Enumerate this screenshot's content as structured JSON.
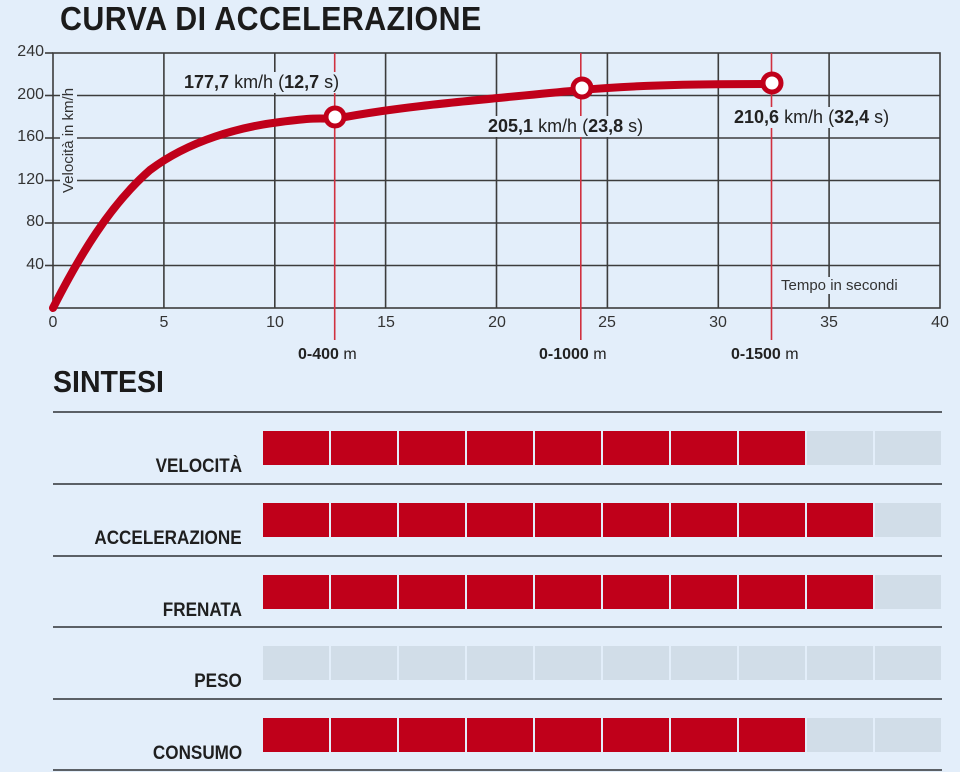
{
  "title": "CURVA DI ACCELERAZIONE",
  "synthesis_title": "SINTESI",
  "colors": {
    "accent": "#c0001a",
    "background": "#e3eefa",
    "empty_cell": "#d1dde8",
    "grid": "#3a3a3a"
  },
  "chart": {
    "ylabel": "Velocità in km/h",
    "xlabel": "Tempo in secondi",
    "yticks": [
      "240",
      "200",
      "160",
      "120",
      "80",
      "40"
    ],
    "xticks": [
      "0",
      "5",
      "10",
      "15",
      "20",
      "25",
      "30",
      "35",
      "40"
    ],
    "annotations": [
      {
        "speed": "177,7",
        "unit": "km/h",
        "time": "12,7",
        "tunit": "s",
        "distance": "0-400",
        "dunit": "m"
      },
      {
        "speed": "205,1",
        "unit": "km/h",
        "time": "23,8",
        "tunit": "s",
        "distance": "0-1000",
        "dunit": "m"
      },
      {
        "speed": "210,6",
        "unit": "km/h",
        "time": "32,4",
        "tunit": "s",
        "distance": "0-1500",
        "dunit": "m"
      }
    ]
  },
  "chart_data": [
    {
      "type": "line",
      "title": "CURVA DI ACCELERAZIONE",
      "xlabel": "Tempo in secondi",
      "ylabel": "Velocità in km/h",
      "xlim": [
        0,
        40
      ],
      "ylim": [
        0,
        240
      ],
      "x_ticks": [
        0,
        5,
        10,
        15,
        20,
        25,
        30,
        35,
        40
      ],
      "y_ticks": [
        40,
        80,
        120,
        160,
        200,
        240
      ],
      "grid": true,
      "series": [
        {
          "name": "Velocità",
          "x": [
            0,
            2,
            4,
            5,
            6,
            8,
            10,
            12.7,
            15,
            20,
            23.8,
            28,
            32.4
          ],
          "y": [
            0,
            55,
            100,
            117,
            130,
            150,
            164,
            177.7,
            186,
            198,
            205.1,
            209,
            210.6
          ]
        }
      ],
      "markers": [
        {
          "x": 12.7,
          "y": 177.7,
          "label": "177,7 km/h (12,7 s)",
          "distance": "0-400 m"
        },
        {
          "x": 23.8,
          "y": 205.1,
          "label": "205,1 km/h (23,8 s)",
          "distance": "0-1000 m"
        },
        {
          "x": 32.4,
          "y": 210.6,
          "label": "210,6 km/h (32,4 s)",
          "distance": "0-1500 m"
        }
      ]
    },
    {
      "type": "bar",
      "title": "SINTESI",
      "categories": [
        "VELOCITÀ",
        "ACCELERAZIONE",
        "FRENATA",
        "PESO",
        "CONSUMO"
      ],
      "values": [
        8,
        9,
        9,
        0,
        8
      ],
      "ylim": [
        0,
        10
      ]
    }
  ],
  "synthesis": [
    {
      "label": "VELOCITÀ",
      "score": 8,
      "max": 10
    },
    {
      "label": "ACCELERAZIONE",
      "score": 9,
      "max": 10
    },
    {
      "label": "FRENATA",
      "score": 9,
      "max": 10
    },
    {
      "label": "PESO",
      "score": 0,
      "max": 10
    },
    {
      "label": "CONSUMO",
      "score": 8,
      "max": 10
    }
  ]
}
